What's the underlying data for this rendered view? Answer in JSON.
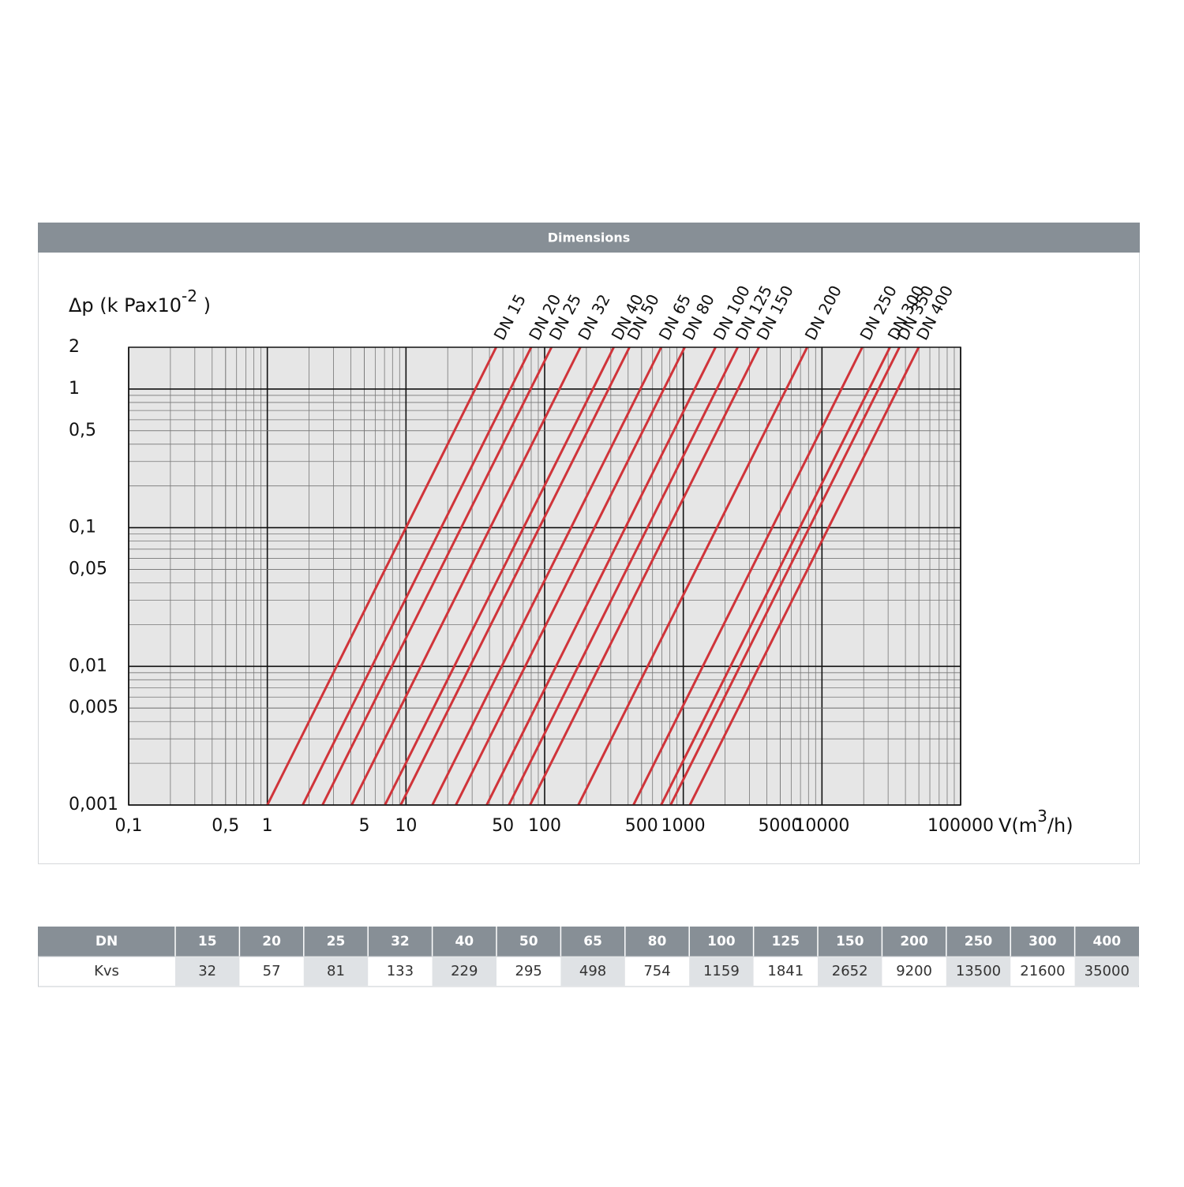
{
  "header": {
    "title": "Dimensions"
  },
  "chart_data": {
    "type": "line",
    "y_label": {
      "text": "Δp (k Pax10",
      "superscript": "-2",
      "suffix": " )"
    },
    "x_label": {
      "text": "V(m",
      "superscript": "3",
      "suffix": "/h)"
    },
    "log_x": true,
    "log_y": true,
    "grid": true,
    "minor_grid": true,
    "xlim": [
      0.1,
      100000
    ],
    "ylim": [
      0.001,
      2
    ],
    "xticks": [
      {
        "value": 0.1,
        "label": "0,1"
      },
      {
        "value": 0.5,
        "label": "0,5"
      },
      1,
      5,
      10,
      50,
      100,
      500,
      1000,
      5000,
      10000,
      100000
    ],
    "yticks": [
      2,
      1,
      {
        "value": 0.5,
        "label": "0,5"
      },
      {
        "value": 0.1,
        "label": "0,1"
      },
      {
        "value": 0.05,
        "label": "0,05"
      },
      {
        "value": 0.01,
        "label": "0,01"
      },
      {
        "value": 0.005,
        "label": "0,005"
      },
      {
        "value": 0.001,
        "label": "0,001"
      }
    ],
    "series": [
      {
        "name": "DN 15",
        "color": "#d0343a",
        "x": [
          1,
          44.7
        ],
        "values": [
          0.001,
          2
        ]
      },
      {
        "name": "DN 20",
        "color": "#d0343a",
        "x": [
          1.8,
          80
        ],
        "values": [
          0.001,
          2
        ]
      },
      {
        "name": "DN 25",
        "color": "#d0343a",
        "x": [
          2.5,
          112
        ],
        "values": [
          0.001,
          2
        ]
      },
      {
        "name": "DN 32",
        "color": "#d0343a",
        "x": [
          4.06,
          181
        ],
        "values": [
          0.001,
          2
        ]
      },
      {
        "name": "DN 40",
        "color": "#d0343a",
        "x": [
          7.05,
          315
        ],
        "values": [
          0.001,
          2
        ]
      },
      {
        "name": "DN 50",
        "color": "#d0343a",
        "x": [
          9.16,
          409
        ],
        "values": [
          0.001,
          2
        ]
      },
      {
        "name": "DN 65",
        "color": "#d0343a",
        "x": [
          15.5,
          693
        ],
        "values": [
          0.001,
          2
        ]
      },
      {
        "name": "DN 80",
        "color": "#d0343a",
        "x": [
          22.9,
          1024
        ],
        "values": [
          0.001,
          2
        ]
      },
      {
        "name": "DN 100",
        "color": "#d0343a",
        "x": [
          38.2,
          1708
        ],
        "values": [
          0.001,
          2
        ]
      },
      {
        "name": "DN 125",
        "color": "#d0343a",
        "x": [
          55.2,
          2467
        ],
        "values": [
          0.001,
          2
        ]
      },
      {
        "name": "DN 150",
        "color": "#d0343a",
        "x": [
          78.5,
          3509
        ],
        "values": [
          0.001,
          2
        ]
      },
      {
        "name": "DN 200",
        "color": "#d0343a",
        "x": [
          175,
          7823
        ],
        "values": [
          0.001,
          2
        ]
      },
      {
        "name": "DN 250",
        "color": "#d0343a",
        "x": [
          437,
          19534
        ],
        "values": [
          0.001,
          2
        ]
      },
      {
        "name": "DN 300",
        "color": "#d0343a",
        "x": [
          692,
          30932
        ],
        "values": [
          0.001,
          2
        ]
      },
      {
        "name": "DN 350",
        "color": "#d0343a",
        "x": [
          810,
          36207
        ],
        "values": [
          0.001,
          2
        ]
      },
      {
        "name": "DN 400",
        "color": "#d0343a",
        "x": [
          1115,
          49840
        ],
        "values": [
          0.001,
          2
        ]
      }
    ]
  },
  "table": {
    "header": [
      "DN",
      15,
      20,
      25,
      32,
      40,
      50,
      65,
      80,
      100,
      125,
      150,
      200,
      250,
      300,
      400
    ],
    "rows": [
      [
        "Kvs",
        32,
        57,
        81,
        133,
        229,
        295,
        498,
        754,
        1159,
        1841,
        2652,
        9200,
        13500,
        21600,
        35000
      ]
    ]
  }
}
